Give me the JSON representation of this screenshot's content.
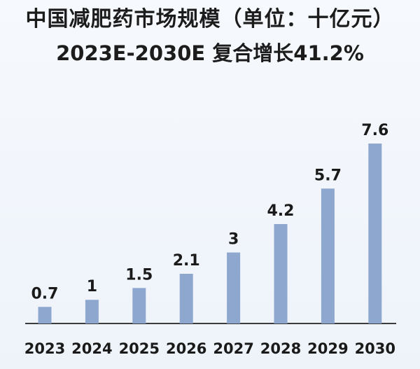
{
  "chart_data": {
    "type": "bar",
    "title": "中国减肥药市场规模（单位：十亿元）",
    "subtitle": "2023E-2030E 复合增长41.2%",
    "categories": [
      "2023",
      "2024",
      "2025",
      "2026",
      "2027",
      "2028",
      "2029",
      "2030"
    ],
    "values": [
      0.7,
      1,
      1.5,
      2.1,
      3,
      4.2,
      5.7,
      7.6
    ],
    "value_labels": [
      "0.7",
      "1",
      "1.5",
      "2.1",
      "3",
      "4.2",
      "5.7",
      "7.6"
    ],
    "ylim": [
      0,
      7.6
    ],
    "grid": false,
    "legend": "none",
    "bar_color": "#8ea7cf"
  }
}
